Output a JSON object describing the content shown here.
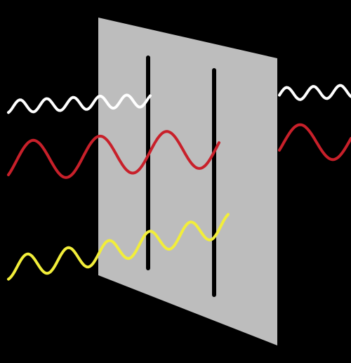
{
  "colors": {
    "background": "#000000",
    "polarizer_panel": "#bdbdbd",
    "slit": "#000000",
    "wave_white": "#ffffff",
    "wave_red": "#c8202a",
    "wave_yellow": "#f2ee3a"
  },
  "diagram": {
    "elements": [
      {
        "name": "polarizer-panel",
        "shape": "parallelogram"
      },
      {
        "name": "slit-left",
        "shape": "vertical-line"
      },
      {
        "name": "slit-right",
        "shape": "vertical-line"
      },
      {
        "name": "wave-white",
        "color_key": "wave_white",
        "passes_panel": true
      },
      {
        "name": "wave-red",
        "color_key": "wave_red",
        "passes_panel": true
      },
      {
        "name": "wave-yellow",
        "color_key": "wave_yellow",
        "passes_panel": false
      }
    ]
  }
}
